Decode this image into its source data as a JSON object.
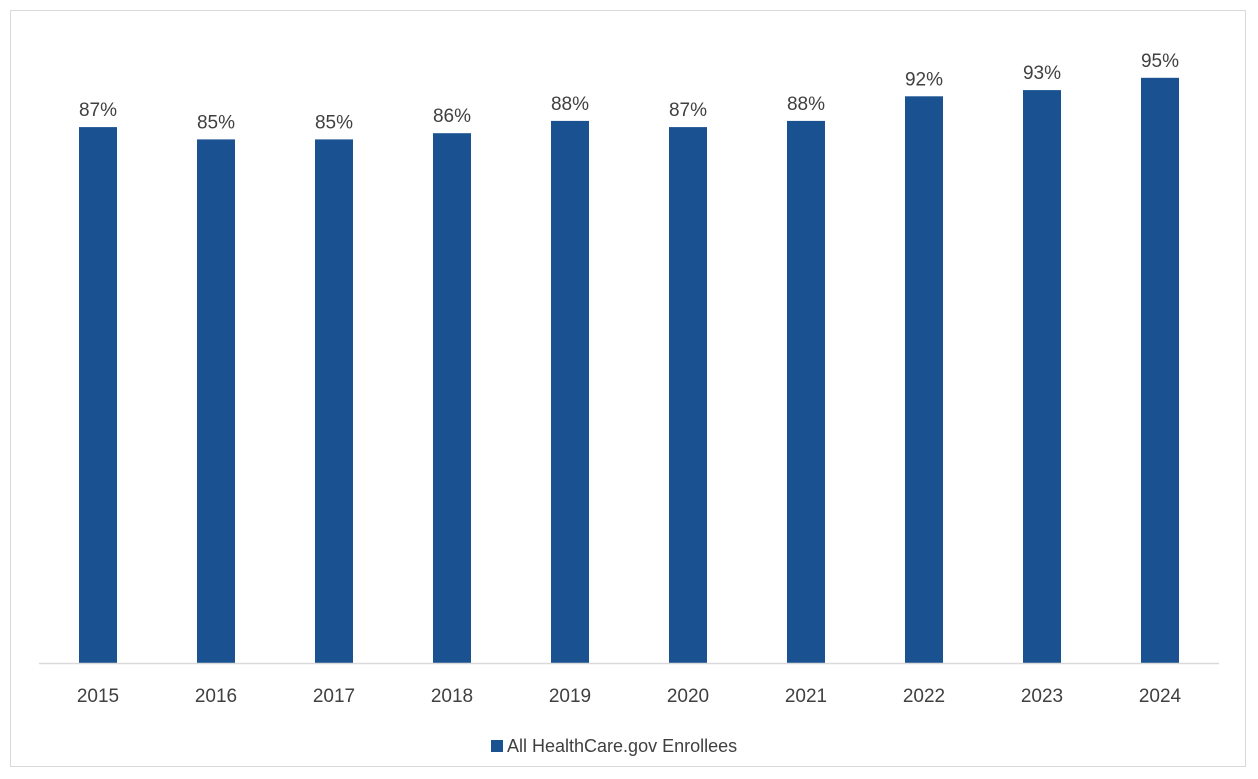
{
  "chart_data": {
    "type": "bar",
    "categories": [
      "2015",
      "2016",
      "2017",
      "2018",
      "2019",
      "2020",
      "2021",
      "2022",
      "2023",
      "2024"
    ],
    "series": [
      {
        "name": "All HealthCare.gov Enrollees",
        "values": [
          87,
          85,
          85,
          86,
          88,
          87,
          88,
          92,
          93,
          95
        ],
        "labels": [
          "87%",
          "85%",
          "85%",
          "86%",
          "88%",
          "87%",
          "88%",
          "92%",
          "93%",
          "95%"
        ],
        "color": "#1a5291"
      }
    ],
    "ylim": [
      0,
      100
    ],
    "grid": false,
    "legend_position": "bottom",
    "axis_color": "#d9d9d9",
    "text_color": "#404040"
  }
}
